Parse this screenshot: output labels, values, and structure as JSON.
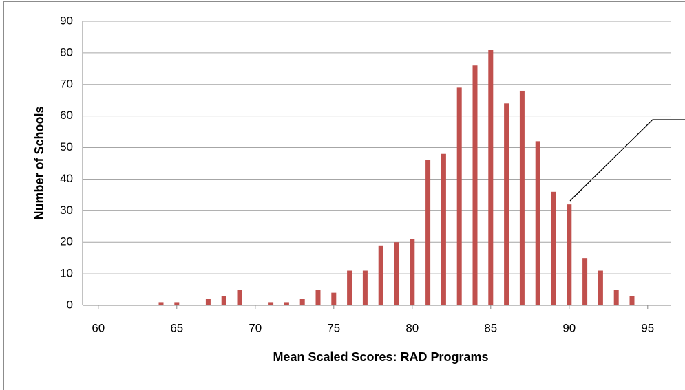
{
  "chart_data": {
    "type": "bar",
    "x_label": "Mean Scaled Scores: RAD Programs",
    "y_label": "Number of Schools",
    "x": [
      64,
      65,
      67,
      68,
      69,
      71,
      72,
      73,
      74,
      75,
      76,
      77,
      78,
      79,
      80,
      81,
      82,
      83,
      84,
      85,
      86,
      87,
      88,
      89,
      90,
      91,
      92,
      93,
      94
    ],
    "values": [
      1,
      1,
      2,
      3,
      5,
      1,
      1,
      2,
      5,
      4,
      11,
      11,
      19,
      20,
      21,
      46,
      48,
      69,
      76,
      81,
      64,
      68,
      52,
      36,
      32,
      15,
      11,
      5,
      3
    ],
    "color": "#c0504d",
    "xlim": [
      59,
      96.5
    ],
    "xticks": [
      60,
      65,
      70,
      75,
      80,
      85,
      90,
      95
    ],
    "ylim": [
      0,
      90
    ],
    "yticks": [
      0,
      10,
      20,
      30,
      40,
      50,
      60,
      70,
      80,
      90
    ],
    "grid": true
  }
}
